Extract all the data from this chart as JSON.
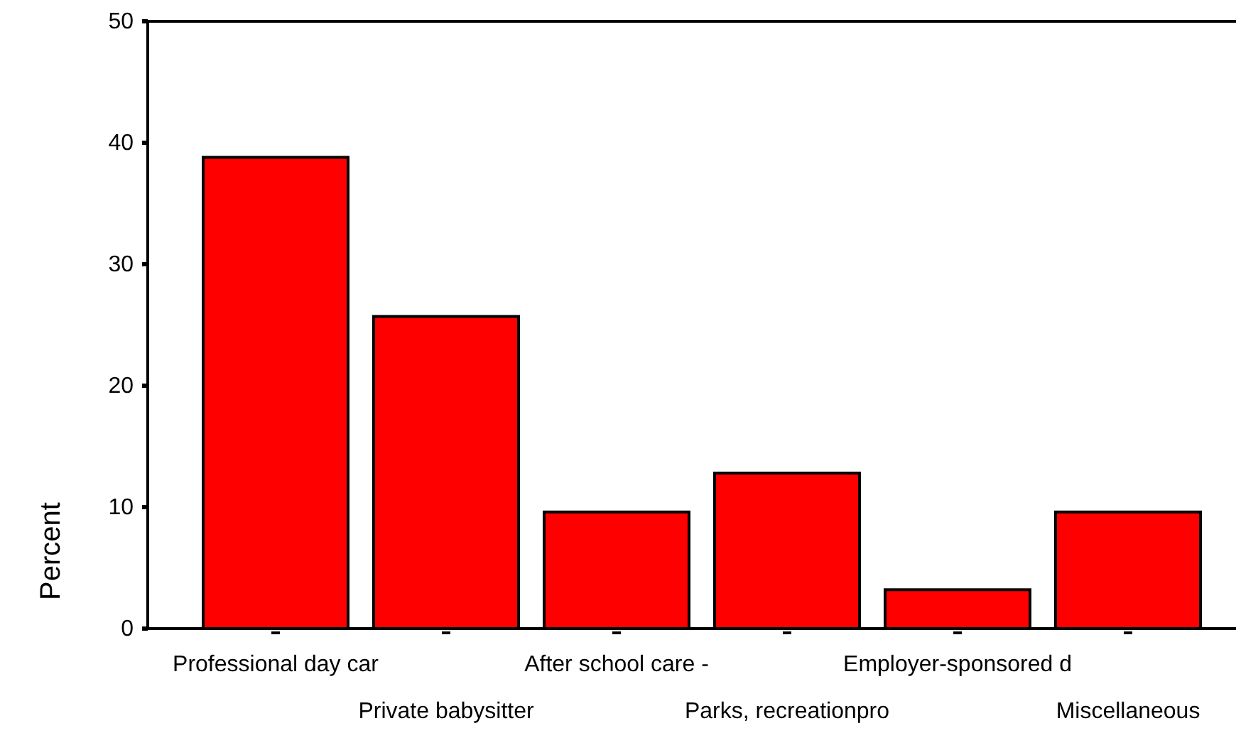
{
  "chart_data": {
    "type": "bar",
    "ylabel": "Percent",
    "categories": [
      "Professional day car",
      "Private babysitter",
      "After school care -",
      "Parks, recreationpro",
      "Employer-sponsored d",
      "Miscellaneous"
    ],
    "values": [
      38.8,
      25.7,
      9.6,
      12.8,
      3.2,
      9.6
    ],
    "color": "#ff0000",
    "ylim": [
      0,
      50
    ],
    "yticks": [
      0,
      10,
      20,
      30,
      40,
      50
    ],
    "grid": false
  }
}
